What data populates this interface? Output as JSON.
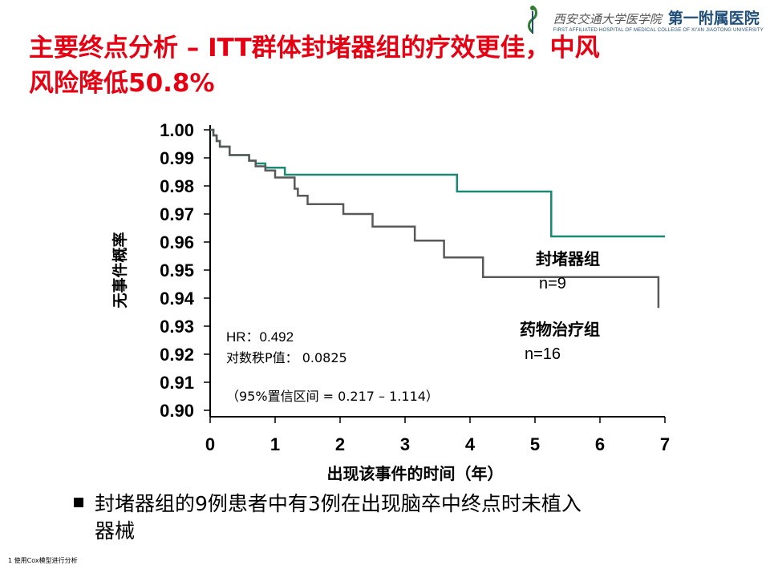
{
  "slide": {
    "title": "主要终点分析 – ITT群体封堵器组的疗效更佳，中风风险降低50.8%",
    "logo_cn": "西安交通大学医学院",
    "logo_dept": "第一附属医院",
    "logo_en": "FIRST AFFILIATED HOSPITAL OF MEDICAL COLLEGE OF XI'AN JIAOTONG UNIVERSITY",
    "bullet_line1": "封堵器组的9例患者中有3例在出现脑卒中终点时未植入",
    "bullet_line2": "器械",
    "footnote": "1 使用Cox模型进行分析"
  },
  "chart_data": {
    "type": "line",
    "xlabel": "出现该事件的时间（年）",
    "ylabel": "无事件概率",
    "xlim": [
      0,
      7
    ],
    "ylim": [
      0.9,
      1.0
    ],
    "xticks": [
      "0",
      "1",
      "2",
      "3",
      "4",
      "5",
      "6",
      "7"
    ],
    "yticks": [
      "1.00",
      "0.99",
      "0.98",
      "0.97",
      "0.96",
      "0.95",
      "0.94",
      "0.93",
      "0.92",
      "0.91",
      "0.90"
    ],
    "series": [
      {
        "name": "封堵器组",
        "n_label": "n=9",
        "color": "#1a8a72",
        "x": [
          0,
          0.05,
          0.1,
          0.15,
          0.3,
          0.6,
          0.7,
          0.85,
          1.15,
          3.8,
          5.25,
          7.0
        ],
        "y": [
          1.0,
          0.998,
          0.996,
          0.994,
          0.991,
          0.989,
          0.988,
          0.9865,
          0.984,
          0.978,
          0.962,
          0.962
        ]
      },
      {
        "name": "药物治疗组",
        "n_label": "n=16",
        "color": "#595959",
        "x": [
          0,
          0.05,
          0.1,
          0.15,
          0.3,
          0.6,
          0.7,
          0.85,
          1.0,
          1.3,
          1.35,
          1.5,
          2.05,
          2.5,
          3.15,
          3.6,
          4.2,
          6.9
        ],
        "y": [
          1.0,
          0.998,
          0.996,
          0.994,
          0.991,
          0.989,
          0.987,
          0.9855,
          0.983,
          0.979,
          0.9765,
          0.9735,
          0.97,
          0.9655,
          0.9605,
          0.9545,
          0.9475,
          0.9365
        ]
      }
    ],
    "annotations": {
      "hr": "HR：0.492",
      "p": "对数秩P值：  0.0825",
      "ci": "（95%置信区间 = 0.217 – 1.114）"
    }
  }
}
